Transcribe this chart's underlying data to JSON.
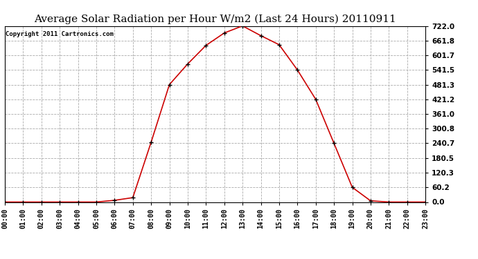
{
  "title": "Average Solar Radiation per Hour W/m2 (Last 24 Hours) 20110911",
  "copyright": "Copyright 2011 Cartronics.com",
  "hours": [
    "00:00",
    "01:00",
    "02:00",
    "03:00",
    "04:00",
    "05:00",
    "06:00",
    "07:00",
    "08:00",
    "09:00",
    "10:00",
    "11:00",
    "12:00",
    "13:00",
    "14:00",
    "15:00",
    "16:00",
    "17:00",
    "18:00",
    "19:00",
    "20:00",
    "21:00",
    "22:00",
    "23:00"
  ],
  "values": [
    0.0,
    0.0,
    0.0,
    0.0,
    0.0,
    0.0,
    7.0,
    18.0,
    245.0,
    481.3,
    566.0,
    642.0,
    693.0,
    722.0,
    682.0,
    645.0,
    541.5,
    421.2,
    240.7,
    60.2,
    5.0,
    0.0,
    0.0,
    0.0
  ],
  "yticks": [
    0.0,
    60.2,
    120.3,
    180.5,
    240.7,
    300.8,
    361.0,
    421.2,
    481.3,
    541.5,
    601.7,
    661.8,
    722.0
  ],
  "line_color": "#cc0000",
  "marker": "+",
  "marker_color": "#000000",
  "marker_size": 5,
  "bg_color": "#ffffff",
  "grid_color": "#aaaaaa",
  "title_fontsize": 11,
  "copyright_fontsize": 6.5,
  "tick_fontsize": 7,
  "ytick_fontsize": 7.5
}
